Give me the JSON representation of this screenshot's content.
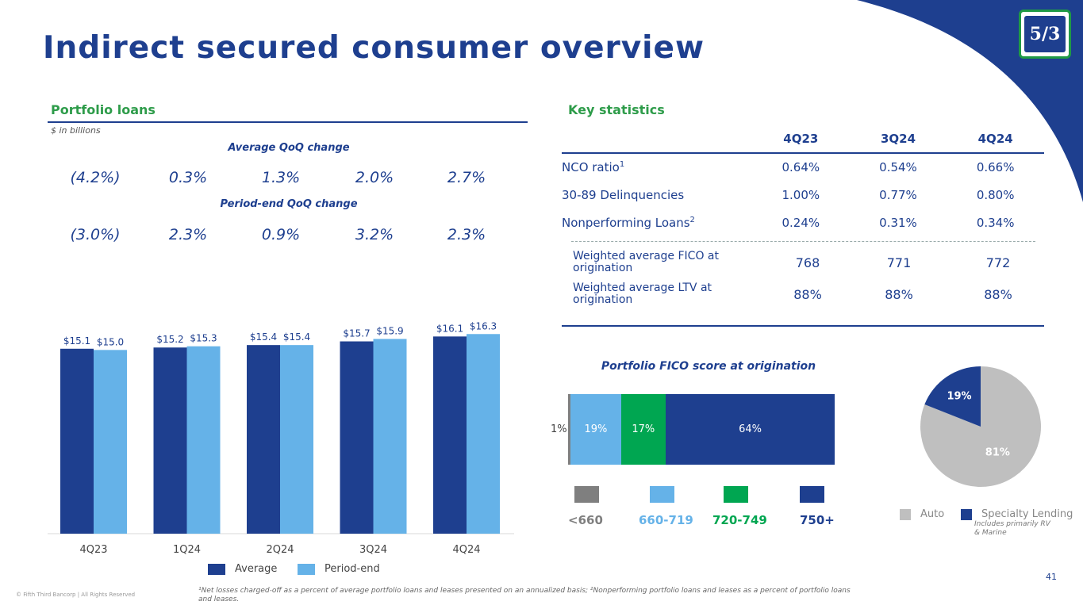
{
  "title": "Indirect secured consumer overview",
  "logo": {
    "text": "5/3"
  },
  "portfolio": {
    "heading": "Portfolio loans",
    "units": "$ in billions",
    "avg_change_title": "Average QoQ change",
    "avg_changes": [
      "(4.2%)",
      "0.3%",
      "1.3%",
      "2.0%",
      "2.7%"
    ],
    "pe_change_title": "Period-end QoQ change",
    "pe_changes": [
      "(3.0%)",
      "2.3%",
      "0.9%",
      "3.2%",
      "2.3%"
    ],
    "legend": {
      "average": "Average",
      "period_end": "Period-end"
    }
  },
  "key_stats": {
    "heading": "Key statistics",
    "columns": [
      "4Q23",
      "3Q24",
      "4Q24"
    ],
    "rows": [
      {
        "label": "NCO ratio",
        "sup": "1",
        "values": [
          "0.64%",
          "0.54%",
          "0.66%"
        ]
      },
      {
        "label": "30-89 Delinquencies",
        "sup": "",
        "values": [
          "1.00%",
          "0.77%",
          "0.80%"
        ]
      },
      {
        "label": "Nonperforming Loans",
        "sup": "2",
        "values": [
          "0.24%",
          "0.31%",
          "0.34%"
        ]
      }
    ],
    "fico_rows": [
      {
        "label": "Weighted average FICO at origination",
        "values": [
          "768",
          "771",
          "772"
        ]
      },
      {
        "label": "Weighted average LTV at origination",
        "values": [
          "88%",
          "88%",
          "88%"
        ]
      }
    ]
  },
  "fico": {
    "title": "Portfolio FICO score at origination",
    "small_label": "1%",
    "legend": [
      "<660",
      "660-719",
      "720-749",
      "750+"
    ]
  },
  "pie_legend": {
    "auto": "Auto",
    "specialty": "Specialty Lending",
    "note": "Includes primarily RV & Marine"
  },
  "colors": {
    "navy": "#1e3f8f",
    "light_blue": "#65b2e8",
    "green": "#00a651",
    "grey": "#7f7f7f",
    "pie_grey": "#bfbfbf"
  },
  "page_number": "41",
  "copyright": "© Fifth Third Bancorp | All Rights Reserved",
  "footnote": "¹Net losses charged-off as a percent of average portfolio loans and leases presented on an annualized basis; ²Nonperforming portfolio loans and leases as a percent of portfolio loans and leases.",
  "chart_data": [
    {
      "type": "bar",
      "categories": [
        "4Q23",
        "1Q24",
        "2Q24",
        "3Q24",
        "4Q24"
      ],
      "series": [
        {
          "name": "Average",
          "values": [
            15.1,
            15.2,
            15.4,
            15.7,
            16.1
          ],
          "labels": [
            "$15.1",
            "$15.2",
            "$15.4",
            "$15.7",
            "$16.1"
          ],
          "color": "#1e3f8f"
        },
        {
          "name": "Period-end",
          "values": [
            15.0,
            15.3,
            15.4,
            15.9,
            16.3
          ],
          "labels": [
            "$15.0",
            "$15.3",
            "$15.4",
            "$15.9",
            "$16.3"
          ],
          "color": "#65b2e8"
        }
      ],
      "ylim": [
        0,
        18
      ]
    },
    {
      "type": "bar",
      "title": "Portfolio FICO score at origination",
      "categories": [
        "<660",
        "660-719",
        "720-749",
        "750+"
      ],
      "values": [
        1,
        19,
        17,
        64
      ],
      "labels": [
        "",
        "19%",
        "17%",
        "64%"
      ],
      "orientation": "horizontal-stacked"
    },
    {
      "type": "pie",
      "categories": [
        "Auto",
        "Specialty Lending"
      ],
      "values": [
        81,
        19
      ],
      "labels": [
        "81%",
        "19%"
      ]
    }
  ]
}
